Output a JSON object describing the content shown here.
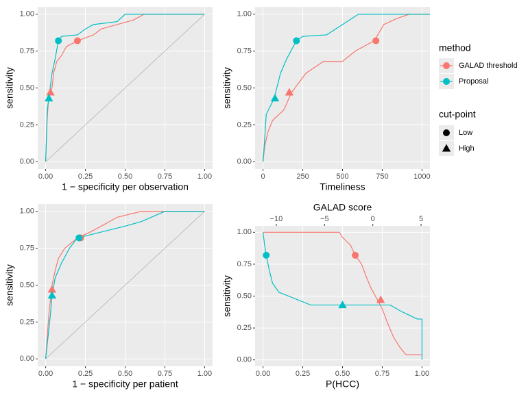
{
  "chart_data": [
    {
      "type": "line",
      "x_label": "1 − specificity per observation",
      "y_label": "sensitivity",
      "diagonal": true,
      "xlim": [
        -0.05,
        1.05
      ],
      "ylim": [
        -0.05,
        1.05
      ],
      "xticks": [
        {
          "value": 0,
          "label": "0.00"
        },
        {
          "value": 0.25,
          "label": "0.25"
        },
        {
          "value": 0.5,
          "label": "0.50"
        },
        {
          "value": 0.75,
          "label": "0.75"
        },
        {
          "value": 1,
          "label": "1.00"
        }
      ],
      "yticks": [
        {
          "value": 0,
          "label": "0.00"
        },
        {
          "value": 0.25,
          "label": "0.25"
        },
        {
          "value": 0.5,
          "label": "0.50"
        },
        {
          "value": 0.75,
          "label": "0.75"
        },
        {
          "value": 1,
          "label": "1.00"
        }
      ],
      "series": [
        {
          "name": "GALAD threshold",
          "color": "#F8766D",
          "x": [
            0,
            0.01,
            0.02,
            0.04,
            0.05,
            0.07,
            0.1,
            0.13,
            0.2,
            0.3,
            0.35,
            0.45,
            0.55,
            0.62,
            1
          ],
          "values": [
            0,
            0.3,
            0.45,
            0.5,
            0.6,
            0.68,
            0.72,
            0.78,
            0.82,
            0.86,
            0.9,
            0.93,
            0.96,
            1,
            1
          ],
          "cut_x": [
            0.2,
            0.03
          ],
          "cut_values": [
            0.82,
            0.47
          ]
        },
        {
          "name": "Proposal",
          "color": "#00BFC4",
          "x": [
            0,
            0.01,
            0.02,
            0.04,
            0.06,
            0.08,
            0.1,
            0.2,
            0.25,
            0.3,
            0.45,
            0.5,
            1
          ],
          "values": [
            0,
            0.35,
            0.43,
            0.6,
            0.7,
            0.82,
            0.85,
            0.86,
            0.9,
            0.93,
            0.95,
            1,
            1
          ],
          "cut_x": [
            0.08,
            0.02
          ],
          "cut_values": [
            0.82,
            0.43
          ]
        }
      ]
    },
    {
      "type": "line",
      "x_label": "Timeliness",
      "y_label": "sensitivity",
      "xlim": [
        -50,
        1050
      ],
      "ylim": [
        -0.05,
        1.05
      ],
      "xticks": [
        0,
        250,
        500,
        750,
        1000
      ],
      "yticks": [
        {
          "value": 0,
          "label": "0.00"
        },
        {
          "value": 0.25,
          "label": "0.25"
        },
        {
          "value": 0.5,
          "label": "0.50"
        },
        {
          "value": 0.75,
          "label": "0.75"
        },
        {
          "value": 1,
          "label": "1.00"
        }
      ],
      "series": [
        {
          "name": "GALAD threshold",
          "color": "#F8766D",
          "x": [
            0,
            10,
            30,
            60,
            130,
            180,
            270,
            380,
            500,
            580,
            700,
            760,
            840,
            920,
            1050
          ],
          "values": [
            0,
            0.1,
            0.2,
            0.28,
            0.35,
            0.47,
            0.6,
            0.68,
            0.68,
            0.75,
            0.82,
            0.93,
            0.97,
            1,
            1
          ],
          "cut_x": [
            710,
            165
          ],
          "cut_values": [
            0.82,
            0.47
          ]
        },
        {
          "name": "Proposal",
          "color": "#00BFC4",
          "x": [
            0,
            10,
            20,
            70,
            110,
            150,
            210,
            250,
            400,
            500,
            600,
            1050
          ],
          "values": [
            0,
            0.15,
            0.32,
            0.43,
            0.6,
            0.7,
            0.82,
            0.85,
            0.86,
            0.93,
            1,
            1
          ],
          "cut_x": [
            210,
            75
          ],
          "cut_values": [
            0.82,
            0.43
          ]
        }
      ]
    },
    {
      "type": "line",
      "x_label": "1 − specificity per patient",
      "y_label": "sensitivity",
      "diagonal": true,
      "xlim": [
        -0.05,
        1.05
      ],
      "ylim": [
        -0.05,
        1.05
      ],
      "xticks": [
        {
          "value": 0,
          "label": "0.00"
        },
        {
          "value": 0.25,
          "label": "0.25"
        },
        {
          "value": 0.5,
          "label": "0.50"
        },
        {
          "value": 0.75,
          "label": "0.75"
        },
        {
          "value": 1,
          "label": "1.00"
        }
      ],
      "yticks": [
        {
          "value": 0,
          "label": "0.00"
        },
        {
          "value": 0.25,
          "label": "0.25"
        },
        {
          "value": 0.5,
          "label": "0.50"
        },
        {
          "value": 0.75,
          "label": "0.75"
        },
        {
          "value": 1,
          "label": "1.00"
        }
      ],
      "series": [
        {
          "name": "GALAD threshold",
          "color": "#F8766D",
          "x": [
            0,
            0.02,
            0.04,
            0.06,
            0.08,
            0.12,
            0.2,
            0.28,
            0.35,
            0.45,
            0.6,
            1
          ],
          "values": [
            0,
            0.3,
            0.5,
            0.6,
            0.68,
            0.75,
            0.82,
            0.86,
            0.9,
            0.96,
            1,
            1
          ],
          "cut_x": [
            0.22,
            0.04
          ],
          "cut_values": [
            0.82,
            0.47
          ]
        },
        {
          "name": "Proposal",
          "color": "#00BFC4",
          "x": [
            0,
            0.03,
            0.04,
            0.06,
            0.1,
            0.15,
            0.2,
            0.35,
            0.5,
            0.6,
            0.75,
            1
          ],
          "values": [
            0,
            0.3,
            0.43,
            0.55,
            0.65,
            0.75,
            0.82,
            0.86,
            0.9,
            0.93,
            1,
            1
          ],
          "cut_x": [
            0.21,
            0.04
          ],
          "cut_values": [
            0.82,
            0.43
          ]
        }
      ]
    },
    {
      "type": "line",
      "x_label": "P(HCC)",
      "y_label": "sensitivity",
      "x2_label": "GALAD score",
      "xlim": [
        -0.05,
        1.05
      ],
      "ylim": [
        -0.05,
        1.05
      ],
      "x2lim": [
        -12.2,
        5.92
      ],
      "xticks": [
        {
          "value": 0,
          "label": "0.00"
        },
        {
          "value": 0.25,
          "label": "0.25"
        },
        {
          "value": 0.5,
          "label": "0.50"
        },
        {
          "value": 0.75,
          "label": "0.75"
        },
        {
          "value": 1,
          "label": "1.00"
        }
      ],
      "x2ticks": [
        {
          "value": -10,
          "label": "−10"
        },
        {
          "value": -5,
          "label": "−5"
        },
        0,
        5
      ],
      "yticks": [
        {
          "value": 0,
          "label": "0.00"
        },
        {
          "value": 0.25,
          "label": "0.25"
        },
        {
          "value": 0.5,
          "label": "0.50"
        },
        {
          "value": 0.75,
          "label": "0.75"
        },
        {
          "value": 1,
          "label": "1.00"
        }
      ],
      "series": [
        {
          "name": "GALAD threshold",
          "color": "#F8766D",
          "x": [
            0,
            0.48,
            0.5,
            0.55,
            0.58,
            0.62,
            0.65,
            0.68,
            0.72,
            0.75,
            0.78,
            0.82,
            0.86,
            0.9,
            1
          ],
          "values": [
            1,
            1,
            0.96,
            0.9,
            0.82,
            0.75,
            0.65,
            0.56,
            0.47,
            0.4,
            0.3,
            0.18,
            0.1,
            0.04,
            0.04
          ],
          "cut_x": [
            0.58,
            0.74
          ],
          "cut_values": [
            0.82,
            0.47
          ]
        },
        {
          "name": "Proposal",
          "color": "#00BFC4",
          "x": [
            0,
            0.01,
            0.02,
            0.04,
            0.06,
            0.1,
            0.2,
            0.3,
            0.8,
            0.87,
            0.92,
            0.97,
            1,
            1
          ],
          "values": [
            1,
            0.9,
            0.82,
            0.7,
            0.6,
            0.53,
            0.48,
            0.43,
            0.43,
            0.38,
            0.35,
            0.32,
            0.32,
            0
          ],
          "cut_x": [
            0.02,
            0.5
          ],
          "cut_values": [
            0.82,
            0.43
          ]
        }
      ]
    }
  ],
  "legend": {
    "title": "method",
    "shape_title": "cut-point",
    "shapes": [
      "Low",
      "High"
    ]
  }
}
